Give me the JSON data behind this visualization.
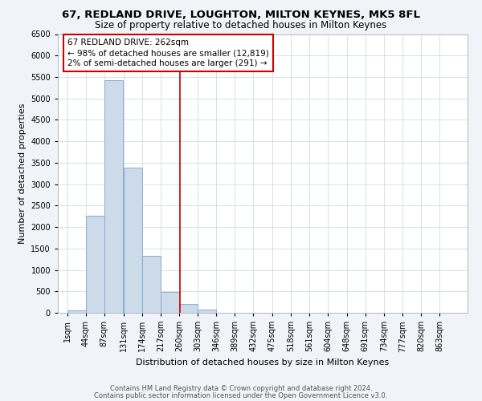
{
  "title": "67, REDLAND DRIVE, LOUGHTON, MILTON KEYNES, MK5 8FL",
  "subtitle": "Size of property relative to detached houses in Milton Keynes",
  "xlabel": "Distribution of detached houses by size in Milton Keynes",
  "ylabel": "Number of detached properties",
  "bin_labels": [
    "1sqm",
    "44sqm",
    "87sqm",
    "131sqm",
    "174sqm",
    "217sqm",
    "260sqm",
    "303sqm",
    "346sqm",
    "389sqm",
    "432sqm",
    "475sqm",
    "518sqm",
    "561sqm",
    "604sqm",
    "648sqm",
    "691sqm",
    "734sqm",
    "777sqm",
    "820sqm",
    "863sqm"
  ],
  "bin_left_edges": [
    1,
    44,
    87,
    131,
    174,
    217,
    260,
    303,
    346,
    389,
    432,
    475,
    518,
    561,
    604,
    648,
    691,
    734,
    777,
    820,
    863
  ],
  "bin_width": 43,
  "bar_heights": [
    50,
    2270,
    5430,
    3380,
    1320,
    490,
    200,
    80,
    0,
    0,
    0,
    0,
    0,
    0,
    0,
    0,
    0,
    0,
    0,
    0,
    0
  ],
  "bar_color": "#ccdaea",
  "bar_edgecolor": "#85aecf",
  "vline_x": 262,
  "vline_color": "#cc0000",
  "annotation_title": "67 REDLAND DRIVE: 262sqm",
  "annotation_line1": "← 98% of detached houses are smaller (12,819)",
  "annotation_line2": "2% of semi-detached houses are larger (291) →",
  "annotation_box_edgecolor": "#cc0000",
  "ylim": [
    0,
    6500
  ],
  "yticks": [
    0,
    500,
    1000,
    1500,
    2000,
    2500,
    3000,
    3500,
    4000,
    4500,
    5000,
    5500,
    6000,
    6500
  ],
  "footer1": "Contains HM Land Registry data © Crown copyright and database right 2024.",
  "footer2": "Contains public sector information licensed under the Open Government Licence v3.0.",
  "bg_color": "#f0f4f8",
  "plot_bg_color": "#ffffff",
  "title_fontsize": 9.5,
  "subtitle_fontsize": 8.5,
  "axis_label_fontsize": 8,
  "tick_fontsize": 7,
  "annotation_fontsize": 7.5,
  "footer_fontsize": 6
}
